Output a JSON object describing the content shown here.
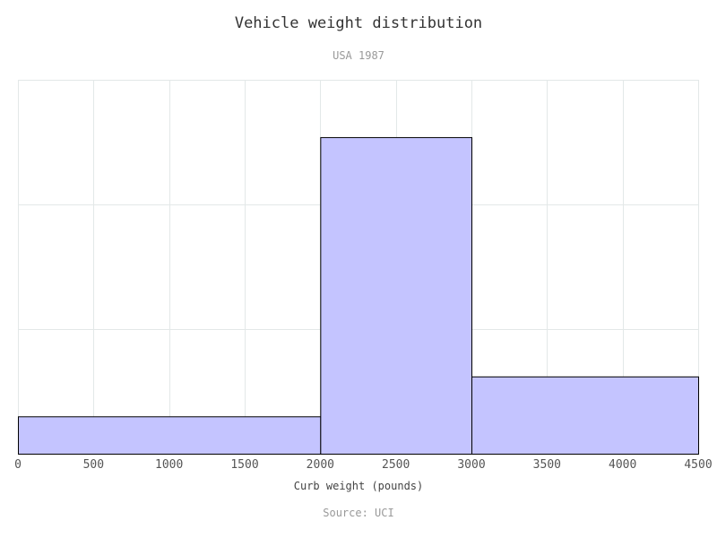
{
  "chart_data": {
    "type": "bar",
    "title": "Vehicle weight distribution",
    "subtitle": "USA 1987",
    "source": "Source: UCI",
    "xlabel": "Curb weight (pounds)",
    "ylabel": "",
    "xlim": [
      0,
      4500
    ],
    "ylim": [
      0,
      150
    ],
    "x_ticks": [
      0,
      500,
      1000,
      1500,
      2000,
      2500,
      3000,
      3500,
      4000,
      4500
    ],
    "y_grid": [
      0,
      50,
      100,
      150
    ],
    "y_tick_labels_shown": false,
    "grid": true,
    "bins": [
      {
        "start": 0,
        "end": 2000,
        "value": 15
      },
      {
        "start": 2000,
        "end": 3000,
        "value": 127
      },
      {
        "start": 3000,
        "end": 4500,
        "value": 31
      }
    ],
    "colors": {
      "bar_fill": "#c4c4ff",
      "bar_stroke": "#000000",
      "grid": "#e3e8e8"
    }
  }
}
